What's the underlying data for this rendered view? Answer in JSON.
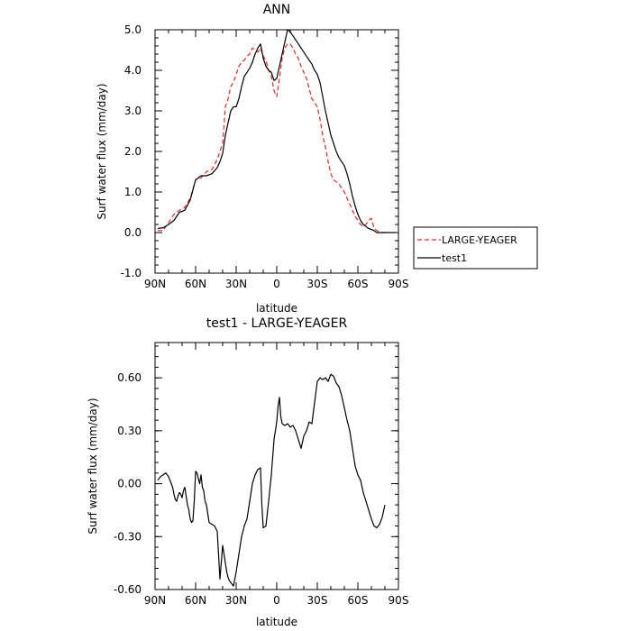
{
  "chart_data": [
    {
      "type": "line",
      "title": "ANN",
      "xlabel": "latitude",
      "ylabel": "Surf water flux (mm/day)",
      "xlim": [
        90,
        -90
      ],
      "ylim": [
        -1.0,
        5.0
      ],
      "x_tick_values": [
        90,
        60,
        30,
        0,
        -30,
        -60,
        -90
      ],
      "x_tick_labels": [
        "90N",
        "60N",
        "30N",
        "0",
        "30S",
        "60S",
        "90S"
      ],
      "y_tick_values": [
        -1,
        0,
        1,
        2,
        3,
        4,
        5
      ],
      "y_tick_labels": [
        "-1.0",
        "0.0",
        "1.0",
        "2.0",
        "3.0",
        "4.0",
        "5.0"
      ],
      "legend_placement": "right",
      "series": [
        {
          "name": "LARGE-YEAGER",
          "color": "#e8262b",
          "dash": "dashed",
          "x": [
            88,
            84,
            80,
            76,
            72,
            68,
            64,
            60,
            56,
            52,
            48,
            44,
            40,
            38,
            36,
            34,
            32,
            30,
            28,
            26,
            24,
            22,
            20,
            18,
            16,
            14,
            12,
            10,
            8,
            6,
            4,
            2,
            0,
            -2,
            -4,
            -6,
            -8,
            -10,
            -12,
            -14,
            -16,
            -18,
            -20,
            -22,
            -24,
            -26,
            -28,
            -30,
            -32,
            -34,
            -36,
            -38,
            -40,
            -42,
            -44,
            -46,
            -48,
            -50,
            -52,
            -54,
            -56,
            -58,
            -60,
            -62,
            -64,
            -66,
            -68,
            -70,
            -72,
            -74,
            -76,
            -78,
            -80
          ],
          "y": [
            0.05,
            0.05,
            0.25,
            0.45,
            0.55,
            0.62,
            0.85,
            1.3,
            1.35,
            1.5,
            1.55,
            1.8,
            2.2,
            3.1,
            3.3,
            3.6,
            3.7,
            3.9,
            4.1,
            4.2,
            4.25,
            4.35,
            4.4,
            4.55,
            4.5,
            4.45,
            4.55,
            4.35,
            4.25,
            4.0,
            3.85,
            3.5,
            3.35,
            3.8,
            4.3,
            4.55,
            4.65,
            4.65,
            4.55,
            4.4,
            4.3,
            4.1,
            3.95,
            3.8,
            3.55,
            3.3,
            3.2,
            3.1,
            2.8,
            2.4,
            2.1,
            1.75,
            1.45,
            1.3,
            1.25,
            1.2,
            1.1,
            1.0,
            0.85,
            0.7,
            0.55,
            0.4,
            0.3,
            0.2,
            0.15,
            0.2,
            0.3,
            0.35,
            0.1,
            0.05,
            0.02,
            0.0,
            0.0
          ]
        },
        {
          "name": "test1",
          "color": "#000000",
          "dash": "solid",
          "x": [
            88,
            84,
            80,
            76,
            72,
            68,
            64,
            60,
            56,
            52,
            48,
            44,
            42,
            40,
            38,
            36,
            34,
            32,
            30,
            28,
            26,
            24,
            22,
            20,
            18,
            16,
            14,
            12,
            10,
            8,
            6,
            4,
            2,
            0,
            -2,
            -4,
            -6,
            -8,
            -10,
            -12,
            -14,
            -16,
            -18,
            -20,
            -22,
            -24,
            -26,
            -28,
            -30,
            -32,
            -34,
            -36,
            -38,
            -40,
            -42,
            -44,
            -46,
            -48,
            -50,
            -52,
            -54,
            -56,
            -58,
            -60,
            -62,
            -64,
            -66,
            -68,
            -70,
            -72,
            -74,
            -76,
            -78,
            -80,
            -84,
            -88
          ],
          "y": [
            0.1,
            0.12,
            0.2,
            0.3,
            0.5,
            0.55,
            0.8,
            1.3,
            1.4,
            1.4,
            1.45,
            1.6,
            1.75,
            1.95,
            2.4,
            2.7,
            3.0,
            3.1,
            3.1,
            3.3,
            3.6,
            3.85,
            3.95,
            4.05,
            4.2,
            4.4,
            4.55,
            4.65,
            4.3,
            4.1,
            4.0,
            3.95,
            3.75,
            3.8,
            4.1,
            4.4,
            4.7,
            5.0,
            4.95,
            4.85,
            4.75,
            4.65,
            4.55,
            4.45,
            4.35,
            4.25,
            4.15,
            4.0,
            3.9,
            3.7,
            3.35,
            3.0,
            2.7,
            2.4,
            2.2,
            2.0,
            1.85,
            1.75,
            1.65,
            1.45,
            1.2,
            0.9,
            0.65,
            0.45,
            0.3,
            0.2,
            0.15,
            0.1,
            0.08,
            0.05,
            0.0,
            0.0,
            0.0,
            0.0,
            0.0,
            0.0
          ]
        }
      ]
    },
    {
      "type": "line",
      "title": "test1  -  LARGE-YEAGER",
      "xlabel": "latitude",
      "ylabel": "Surf water flux (mm/day)",
      "xlim": [
        90,
        -90
      ],
      "ylim": [
        -0.6,
        0.8
      ],
      "x_tick_values": [
        90,
        60,
        30,
        0,
        -30,
        -60,
        -90
      ],
      "x_tick_labels": [
        "90N",
        "60N",
        "30N",
        "0",
        "30S",
        "60S",
        "90S"
      ],
      "y_tick_values": [
        -0.6,
        -0.3,
        0.0,
        0.3,
        0.6
      ],
      "y_tick_labels": [
        "-0.60",
        "-0.30",
        "0.00",
        "0.30",
        "0.60"
      ],
      "series": [
        {
          "name": "",
          "color": "#000000",
          "dash": "solid",
          "x": [
            88,
            86,
            84,
            82,
            80,
            78,
            77,
            76,
            75,
            74,
            73,
            72,
            71,
            70,
            69,
            68,
            66,
            65,
            64,
            63,
            62,
            61,
            60,
            59,
            58,
            57,
            56,
            55,
            54,
            53,
            52,
            50,
            48,
            46,
            44,
            42,
            40,
            39,
            38,
            37,
            36,
            35,
            34,
            32,
            30,
            28,
            26,
            24,
            22,
            20,
            18,
            16,
            14,
            12,
            11,
            10,
            8,
            6,
            4,
            2,
            0,
            -1,
            -2,
            -3,
            -4,
            -6,
            -8,
            -10,
            -12,
            -14,
            -16,
            -18,
            -20,
            -22,
            -24,
            -26,
            -28,
            -30,
            -32,
            -34,
            -36,
            -38,
            -40,
            -42,
            -44,
            -46,
            -48,
            -50,
            -52,
            -54,
            -56,
            -58,
            -60,
            -62,
            -64,
            -66,
            -68,
            -70,
            -72,
            -74,
            -76,
            -78,
            -80
          ],
          "y": [
            0.02,
            0.04,
            0.05,
            0.06,
            0.04,
            0.0,
            -0.02,
            -0.06,
            -0.09,
            -0.1,
            -0.07,
            -0.05,
            -0.06,
            -0.08,
            -0.04,
            -0.02,
            -0.12,
            -0.15,
            -0.2,
            -0.22,
            -0.21,
            -0.1,
            0.07,
            0.06,
            0.03,
            0.0,
            0.05,
            -0.02,
            -0.04,
            -0.1,
            -0.12,
            -0.22,
            -0.23,
            -0.24,
            -0.27,
            -0.54,
            -0.35,
            -0.4,
            -0.45,
            -0.5,
            -0.53,
            -0.55,
            -0.56,
            -0.58,
            -0.5,
            -0.4,
            -0.3,
            -0.24,
            -0.2,
            -0.1,
            0.0,
            0.05,
            0.08,
            0.09,
            -0.12,
            -0.25,
            -0.24,
            -0.1,
            0.05,
            0.25,
            0.35,
            0.44,
            0.49,
            0.38,
            0.34,
            0.33,
            0.34,
            0.32,
            0.33,
            0.3,
            0.25,
            0.2,
            0.27,
            0.3,
            0.35,
            0.34,
            0.46,
            0.58,
            0.6,
            0.59,
            0.6,
            0.58,
            0.62,
            0.61,
            0.57,
            0.55,
            0.5,
            0.43,
            0.36,
            0.3,
            0.2,
            0.1,
            0.05,
            0.02,
            -0.05,
            -0.1,
            -0.15,
            -0.2,
            -0.24,
            -0.25,
            -0.23,
            -0.19,
            -0.12
          ]
        }
      ]
    }
  ]
}
